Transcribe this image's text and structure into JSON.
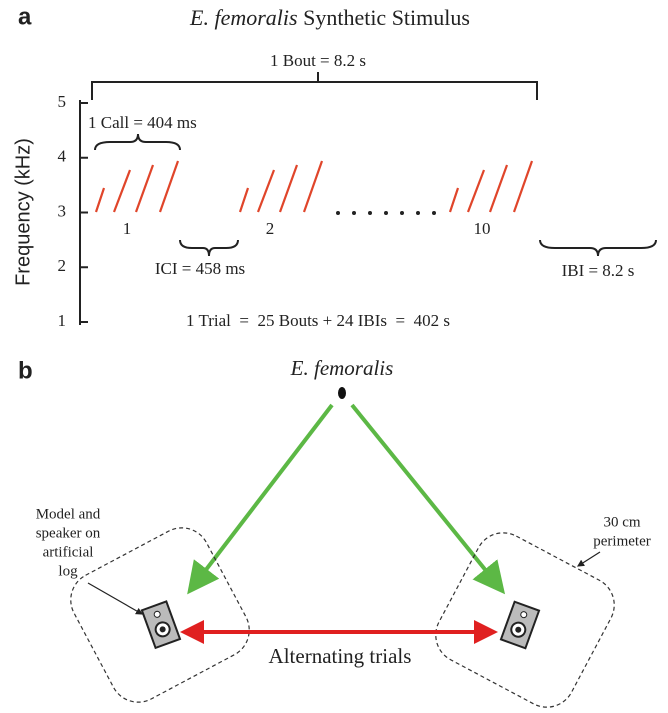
{
  "panel_a": {
    "label": "a",
    "title_italic": "E. femoralis",
    "title_rest": " Synthetic Stimulus",
    "bout": "1 Bout = 8.2 s",
    "call": "1 Call = 404 ms",
    "axis_label": "Frequency  (kHz)",
    "ticks": [
      1,
      2,
      3,
      4,
      5
    ],
    "call_numbers": [
      "1",
      "2",
      "10"
    ],
    "ici": "ICI = 458 ms",
    "ibi": "IBI = 8.2 s",
    "trial": "1 Trial  =  25 Bouts + 24 IBIs  =  402 s"
  },
  "panel_b": {
    "label": "b",
    "frog": "E. femoralis",
    "left_note": [
      "Model and",
      "speaker on",
      "artificial",
      "log"
    ],
    "right_note": [
      "30 cm",
      "perimeter"
    ],
    "arrow_label": "Alternating trials"
  }
}
